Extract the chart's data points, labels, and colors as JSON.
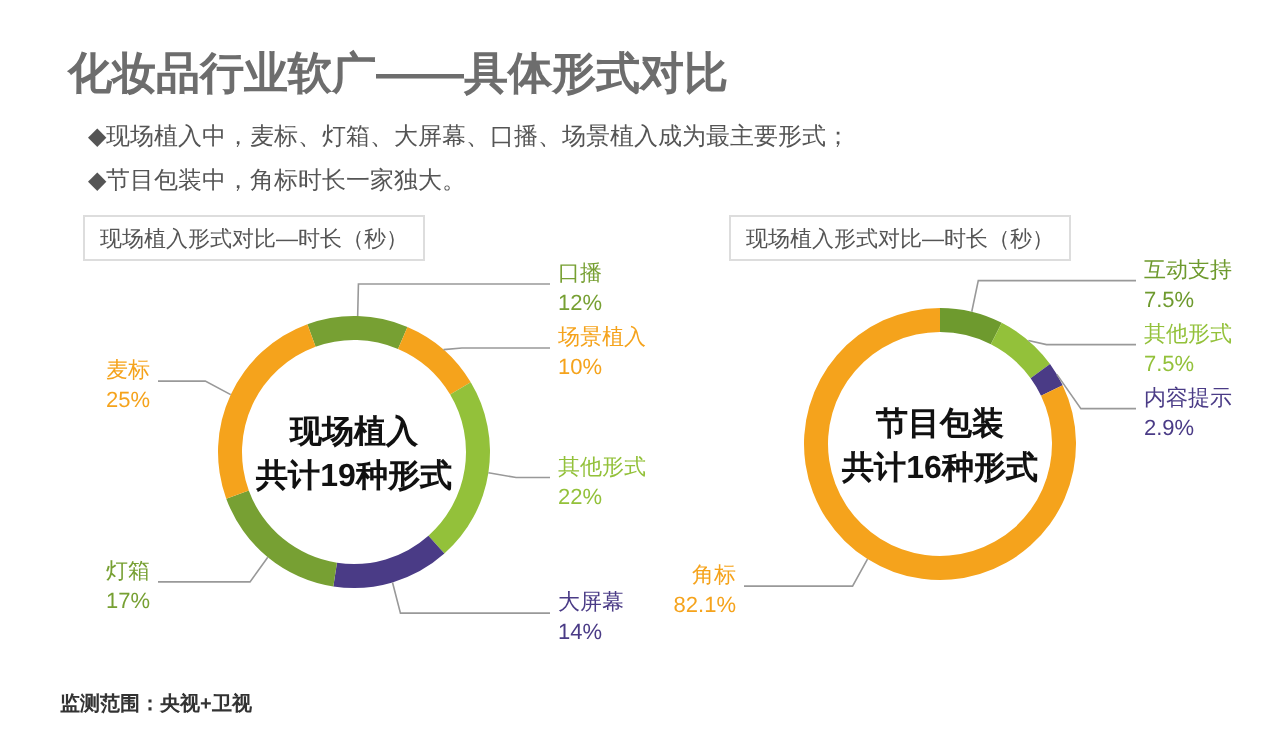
{
  "chart_data": [
    {
      "type": "other",
      "title": "化妆品行业软广——具体形式对比",
      "annotations": [
        "◆现场植入中，麦标、灯箱、大屏幕、口播、场景植入成为最主要形式；",
        "◆节目包装中，角标时长一家独大。",
        "监测范围：央视+卫视"
      ]
    },
    {
      "type": "donut",
      "title": "现场植入形式对比—时长（秒）",
      "annotations": [
        "现场植入",
        "共计19种形式"
      ],
      "categories": [
        "口播",
        "场景植入",
        "其他形式",
        "大屏幕",
        "灯箱",
        "麦标"
      ],
      "values": [
        12,
        10,
        22,
        14,
        17,
        25
      ],
      "colors": [
        "#77a033",
        "#f5a31c",
        "#93c13a",
        "#4a3b86",
        "#77a033",
        "#f5a31c"
      ],
      "value_labels": [
        "12%",
        "10%",
        "22%",
        "14%",
        "17%",
        "25%"
      ]
    },
    {
      "type": "donut",
      "title": "现场植入形式对比—时长（秒）",
      "annotations": [
        "节目包装",
        "共计16种形式"
      ],
      "categories": [
        "互动支持",
        "其他形式",
        "内容提示",
        "角标"
      ],
      "values": [
        7.5,
        7.5,
        2.9,
        82.1
      ],
      "colors": [
        "#6e9a2e",
        "#93c13a",
        "#4a3b86",
        "#f5a31c"
      ],
      "value_labels": [
        "7.5%",
        "7.5%",
        "2.9%",
        "82.1%"
      ]
    }
  ]
}
